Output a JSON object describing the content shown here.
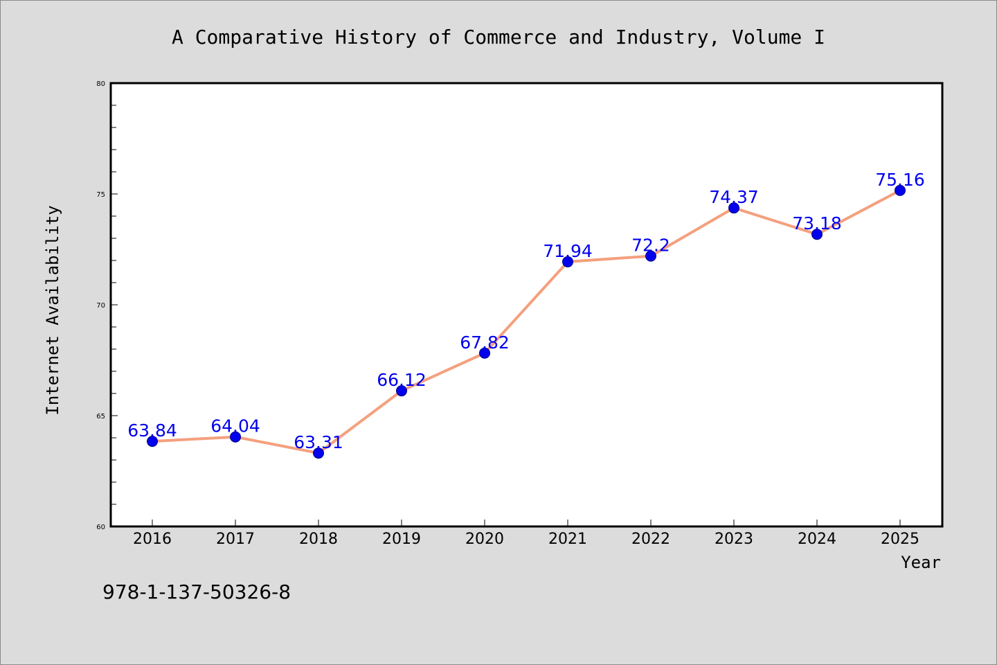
{
  "chart_data": {
    "type": "line",
    "title": "A Comparative History of Commerce and Industry, Volume I",
    "xlabel": "Year",
    "ylabel": "Internet Availability",
    "categories": [
      "2016",
      "2017",
      "2018",
      "2019",
      "2020",
      "2021",
      "2022",
      "2023",
      "2024",
      "2025"
    ],
    "values": [
      63.84,
      64.04,
      63.31,
      66.12,
      67.82,
      71.94,
      72.2,
      74.37,
      73.18,
      75.16
    ],
    "data_labels": [
      "63.84",
      "64.04",
      "63.31",
      "66.12",
      "67.82",
      "71.94",
      "72.2",
      "74.37",
      "73.18",
      "75.16"
    ],
    "ylim": [
      60,
      80
    ],
    "yticks": [
      60,
      65,
      70,
      75,
      80
    ],
    "ytick_labels": [
      "60",
      "65",
      "70",
      "75",
      "80"
    ],
    "grid": false,
    "legend": "none",
    "line_color": "#f4a07e",
    "marker_color": "#0000ee",
    "label_color": "#0000ee",
    "plot_background": "#ffffff",
    "figure_background": "#dcdcdc"
  },
  "footer": {
    "isbn": "978-1-137-50326-8"
  }
}
